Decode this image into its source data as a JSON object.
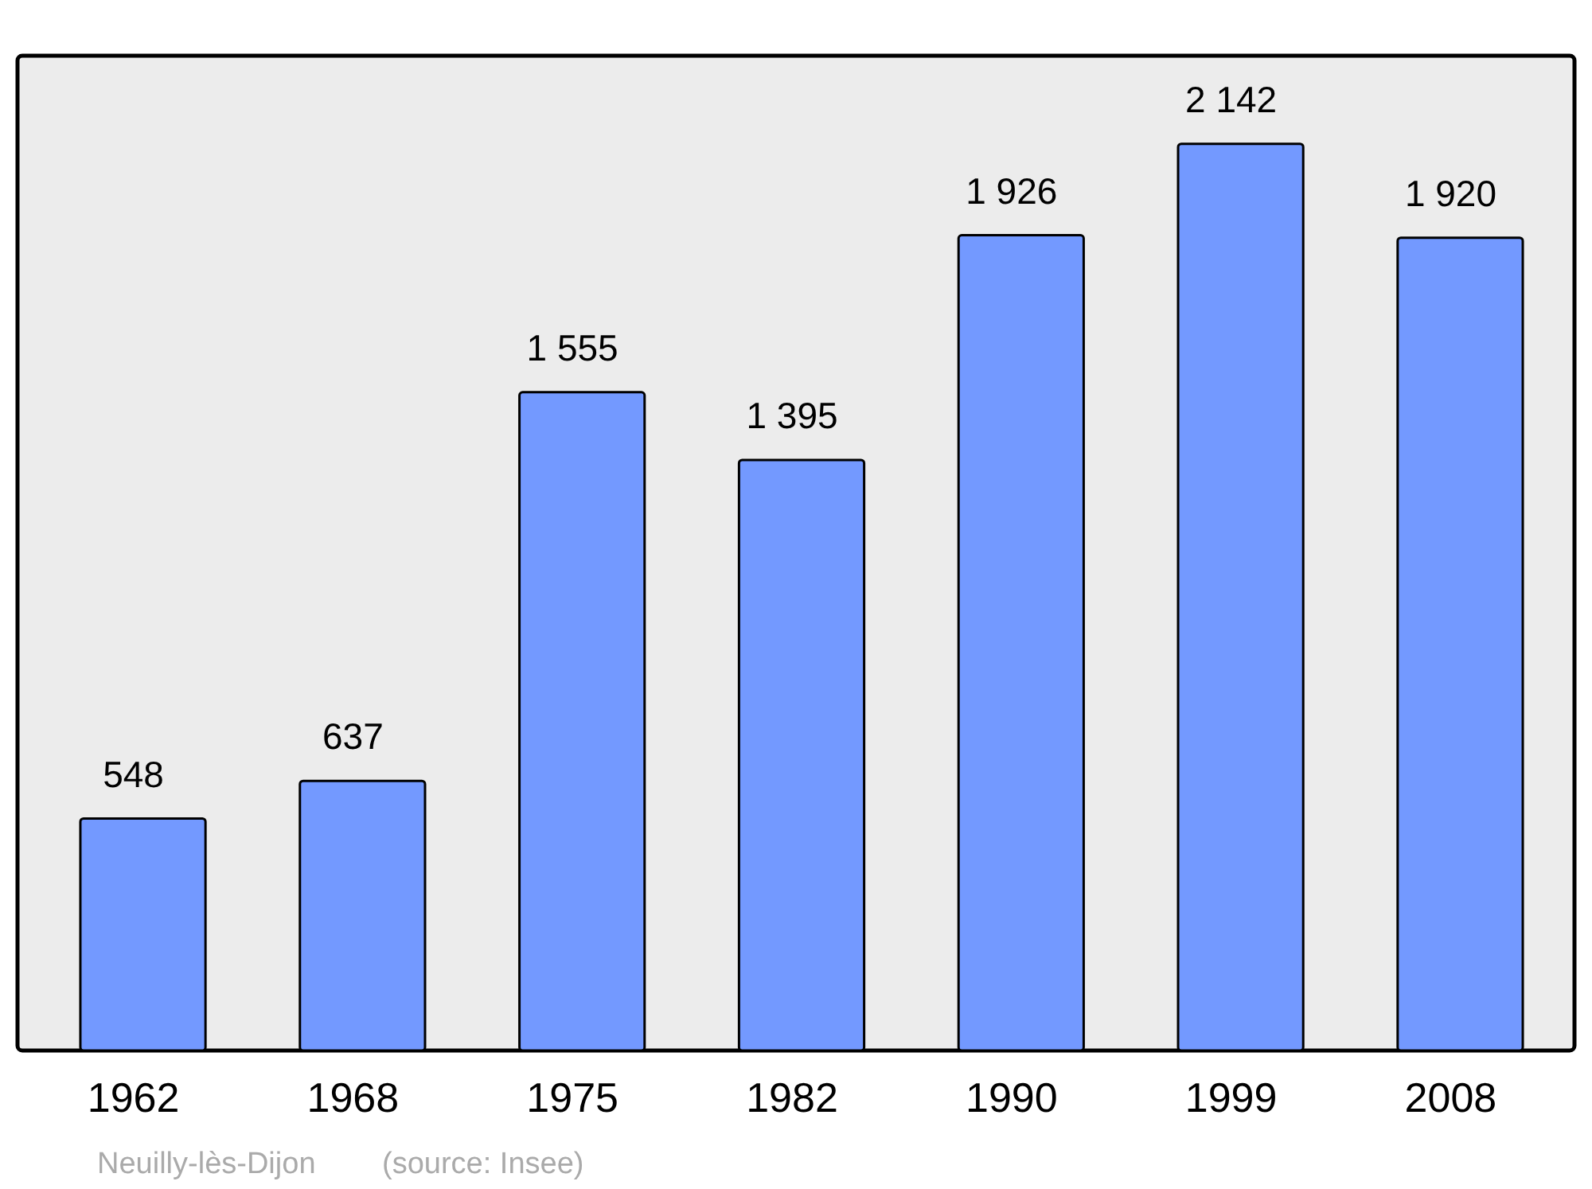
{
  "chart_data": {
    "type": "bar",
    "categories": [
      "1962",
      "1968",
      "1975",
      "1982",
      "1990",
      "1999",
      "2008"
    ],
    "values": [
      548,
      637,
      1555,
      1395,
      1926,
      2142,
      1920
    ],
    "value_labels": [
      "548",
      "637",
      "1 555",
      "1 395",
      "1 926",
      "2 142",
      "1 920"
    ],
    "color": "#7399ff",
    "ylim": [
      0,
      2350
    ],
    "tick_labels": "x",
    "grid": false,
    "annotations": [
      "Neuilly-lès-Dijon",
      "(source: Insee)"
    ]
  }
}
